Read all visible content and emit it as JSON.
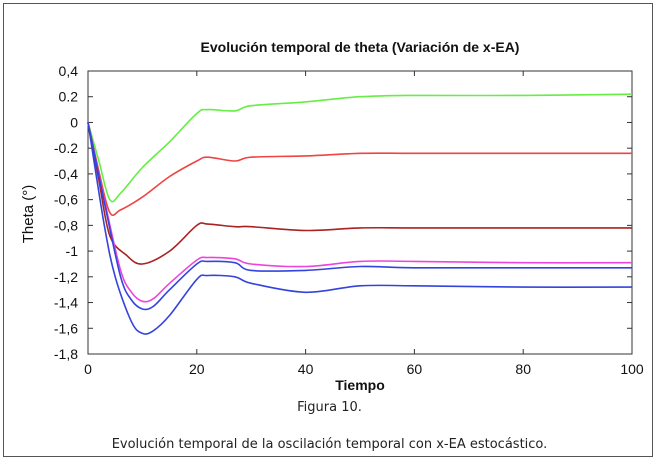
{
  "figure": {
    "number_label": "Figura 10.",
    "caption": "Evolución temporal de la oscilación temporal con x-EA estocástico."
  },
  "chart_data": {
    "type": "line",
    "title": "Evolución temporal de theta (Variación de x-EA)",
    "xlabel": "Tiempo",
    "ylabel": "Theta (°)",
    "xlim": [
      0,
      100
    ],
    "ylim": [
      -1.8,
      0.4
    ],
    "x_ticks": [
      0,
      20,
      40,
      60,
      80,
      100
    ],
    "x_tick_labels": [
      "0",
      "20",
      "40",
      "60",
      "80",
      "100"
    ],
    "y_ticks": [
      0.4,
      0.2,
      0,
      -0.2,
      -0.4,
      -0.6,
      -0.8,
      -1,
      -1.2,
      -1.4,
      -1.6,
      -1.8
    ],
    "y_tick_labels": [
      "0,4",
      "0.2",
      "0",
      "-0.2",
      "-0,4",
      "-0,6",
      "-0,8",
      "-1",
      "-1,2",
      "-1,4",
      "-1,6",
      "-1,8"
    ],
    "grid": false,
    "legend": "none",
    "series": [
      {
        "color": "#66ee44",
        "x": [
          0,
          2,
          4,
          6,
          10,
          15,
          20,
          22,
          27,
          30,
          40,
          50,
          60,
          80,
          100
        ],
        "y": [
          0,
          -0.3,
          -0.6,
          -0.55,
          -0.35,
          -0.15,
          0.07,
          0.1,
          0.09,
          0.13,
          0.16,
          0.2,
          0.21,
          0.21,
          0.22
        ]
      },
      {
        "color": "#ee4444",
        "x": [
          0,
          2,
          4,
          6,
          10,
          15,
          20,
          22,
          27,
          30,
          40,
          50,
          60,
          80,
          100
        ],
        "y": [
          0,
          -0.38,
          -0.7,
          -0.68,
          -0.58,
          -0.42,
          -0.3,
          -0.27,
          -0.3,
          -0.27,
          -0.26,
          -0.24,
          -0.24,
          -0.24,
          -0.24
        ]
      },
      {
        "color": "#aa2222",
        "x": [
          0,
          2,
          4,
          7,
          10,
          15,
          20,
          22,
          27,
          30,
          40,
          50,
          60,
          80,
          100
        ],
        "y": [
          0,
          -0.45,
          -0.88,
          -1.03,
          -1.1,
          -1.0,
          -0.8,
          -0.79,
          -0.81,
          -0.81,
          -0.84,
          -0.82,
          -0.82,
          -0.82,
          -0.82
        ]
      },
      {
        "color": "#ee44dd",
        "x": [
          0,
          3,
          6,
          8,
          10,
          12,
          15,
          20,
          22,
          27,
          30,
          40,
          50,
          60,
          80,
          100
        ],
        "y": [
          0,
          -0.6,
          -1.15,
          -1.32,
          -1.39,
          -1.37,
          -1.25,
          -1.07,
          -1.05,
          -1.06,
          -1.1,
          -1.12,
          -1.08,
          -1.08,
          -1.09,
          -1.09
        ]
      },
      {
        "color": "#3344dd",
        "x": [
          0,
          3,
          6,
          8,
          10,
          12,
          15,
          20,
          22,
          27,
          30,
          40,
          50,
          60,
          80,
          100
        ],
        "y": [
          0,
          -0.62,
          -1.2,
          -1.38,
          -1.45,
          -1.43,
          -1.3,
          -1.1,
          -1.08,
          -1.09,
          -1.15,
          -1.15,
          -1.12,
          -1.13,
          -1.13,
          -1.13
        ]
      },
      {
        "color": "#3344dd",
        "x": [
          0,
          3,
          5,
          8,
          10,
          12,
          15,
          20,
          22,
          27,
          30,
          40,
          50,
          60,
          80,
          100
        ],
        "y": [
          0,
          -0.8,
          -1.2,
          -1.55,
          -1.64,
          -1.62,
          -1.5,
          -1.22,
          -1.19,
          -1.2,
          -1.25,
          -1.32,
          -1.27,
          -1.27,
          -1.28,
          -1.28
        ]
      }
    ]
  }
}
